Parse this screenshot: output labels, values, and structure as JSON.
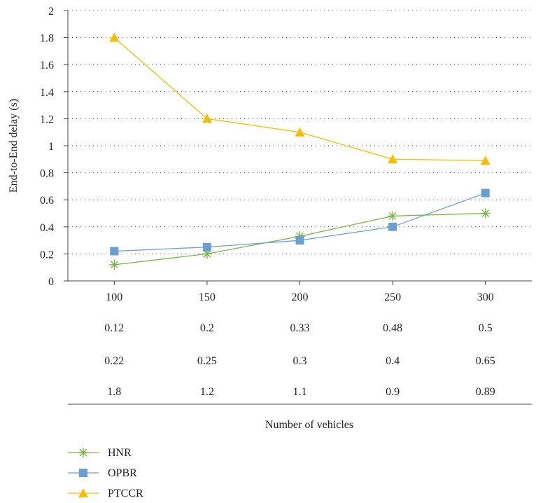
{
  "chart_data": {
    "type": "line",
    "title": "",
    "xlabel": "Number of vehicles",
    "ylabel": "End-to-End delay (s)",
    "ylim": [
      0,
      2
    ],
    "yticks": [
      "0",
      "0.2",
      "0.4",
      "0.6",
      "0.8",
      "1",
      "1.2",
      "1.4",
      "1.6",
      "1.8",
      "2"
    ],
    "categories": [
      "100",
      "150",
      "200",
      "250",
      "300"
    ],
    "grid": "horizontal-dotted",
    "legend_position": "bottom-left",
    "series": [
      {
        "name": "HNR",
        "color": "#7ab648",
        "marker": "asterisk",
        "values": [
          0.12,
          0.2,
          0.33,
          0.48,
          0.5
        ],
        "labels": [
          "0.12",
          "0.2",
          "0.33",
          "0.48",
          "0.5"
        ]
      },
      {
        "name": "OPBR",
        "color": "#6a9fd4",
        "marker": "square",
        "values": [
          0.22,
          0.25,
          0.3,
          0.4,
          0.65
        ],
        "labels": [
          "0.22",
          "0.25",
          "0.3",
          "0.4",
          "0.65"
        ]
      },
      {
        "name": "PTCCR",
        "color": "#f5be00",
        "marker": "triangle",
        "values": [
          1.8,
          1.2,
          1.1,
          0.9,
          0.89
        ],
        "labels": [
          "1.8",
          "1.2",
          "1.1",
          "0.9",
          "0.89"
        ]
      }
    ]
  }
}
